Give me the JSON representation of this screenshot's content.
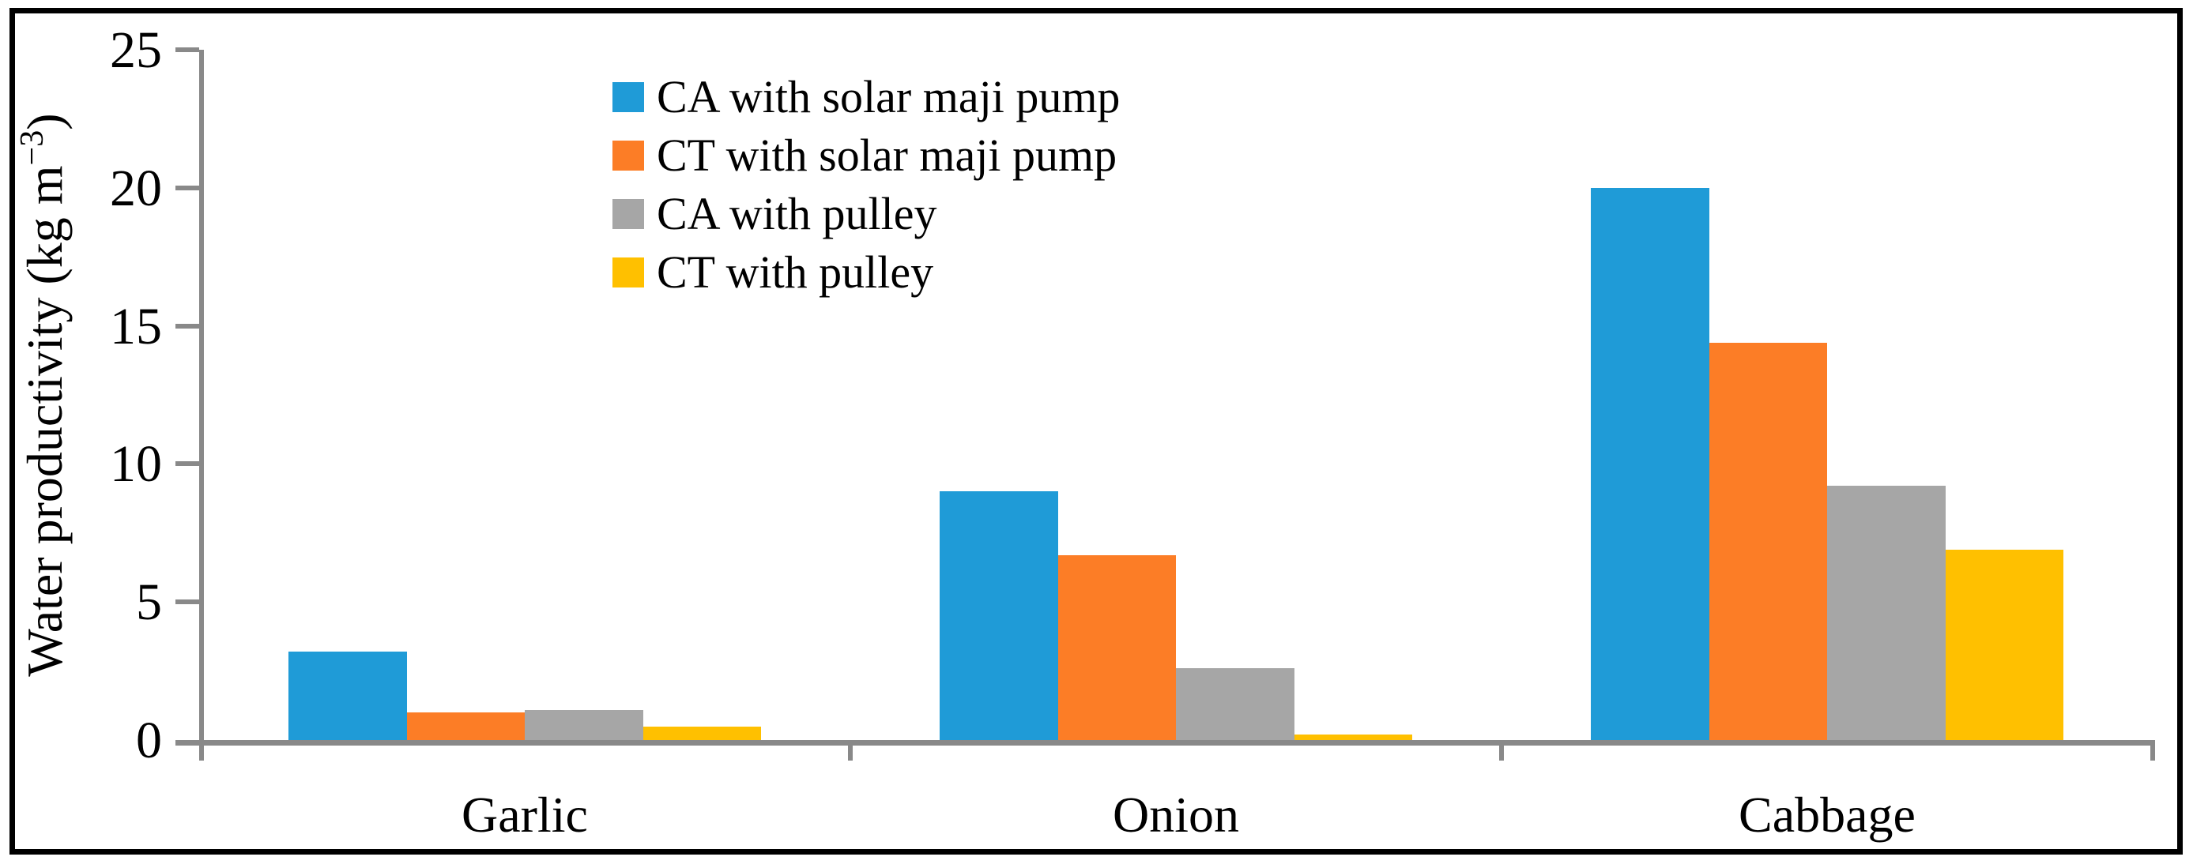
{
  "figure": {
    "background": "#ffffff",
    "border_color": "#000000"
  },
  "chart_data": {
    "type": "bar",
    "title": "",
    "xlabel": "",
    "ylabel": "Water productivity (kg m−3)",
    "ylabel_parts": {
      "prefix": "Water productivity (kg m",
      "sup": "−3",
      "suffix": ")"
    },
    "categories": [
      "Garlic",
      "Onion",
      "Cabbage"
    ],
    "series": [
      {
        "name": "CA with solar maji pump",
        "color": "#1F9BD7",
        "values": [
          3.2,
          9.0,
          20.0
        ]
      },
      {
        "name": "CT with solar maji pump",
        "color": "#FC7D26",
        "values": [
          1.0,
          6.7,
          14.4
        ]
      },
      {
        "name": "CA with pulley",
        "color": "#A6A6A6",
        "values": [
          1.1,
          2.6,
          9.2
        ]
      },
      {
        "name": "CT with pulley",
        "color": "#FFC000",
        "values": [
          0.5,
          0.2,
          6.9
        ]
      }
    ],
    "ylim": [
      0,
      25
    ],
    "yticks": [
      0,
      5,
      10,
      15,
      20,
      25
    ],
    "grid": false,
    "legend_position": "top-center-inside",
    "axis_color": "#898989",
    "text_color": "#000000"
  }
}
